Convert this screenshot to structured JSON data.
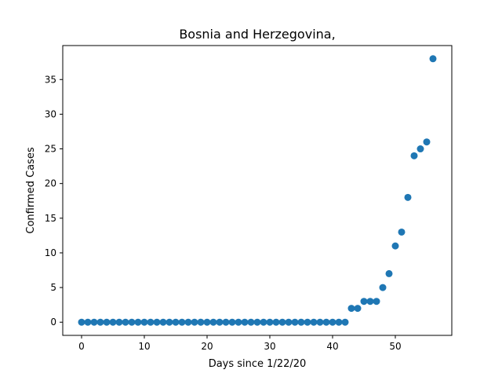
{
  "chart_data": {
    "type": "scatter",
    "title": "Bosnia and Herzegovina,",
    "xlabel": "Days since 1/22/20",
    "ylabel": "Confirmed Cases",
    "xlim": [
      -3,
      59
    ],
    "ylim": [
      -1.9,
      39.9
    ],
    "xticks": [
      0,
      10,
      20,
      30,
      40,
      50
    ],
    "yticks": [
      0,
      5,
      10,
      15,
      20,
      25,
      30,
      35
    ],
    "grid": false,
    "marker_color": "#1f77b4",
    "series": [
      {
        "x": [
          0,
          1,
          2,
          3,
          4,
          5,
          6,
          7,
          8,
          9,
          10,
          11,
          12,
          13,
          14,
          15,
          16,
          17,
          18,
          19,
          20,
          21,
          22,
          23,
          24,
          25,
          26,
          27,
          28,
          29,
          30,
          31,
          32,
          33,
          34,
          35,
          36,
          37,
          38,
          39,
          40,
          41,
          42,
          43,
          44,
          45,
          46,
          47,
          48,
          49,
          50,
          51,
          52,
          53,
          54,
          55,
          56
        ],
        "y": [
          0,
          0,
          0,
          0,
          0,
          0,
          0,
          0,
          0,
          0,
          0,
          0,
          0,
          0,
          0,
          0,
          0,
          0,
          0,
          0,
          0,
          0,
          0,
          0,
          0,
          0,
          0,
          0,
          0,
          0,
          0,
          0,
          0,
          0,
          0,
          0,
          0,
          0,
          0,
          0,
          0,
          0,
          0,
          2,
          2,
          3,
          3,
          3,
          5,
          7,
          11,
          13,
          18,
          24,
          25,
          26,
          38
        ]
      }
    ]
  }
}
